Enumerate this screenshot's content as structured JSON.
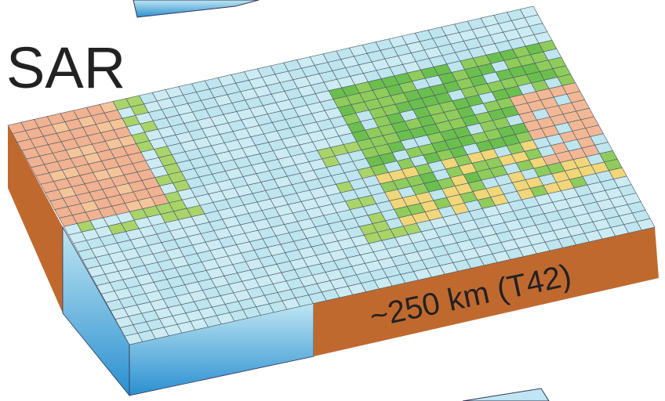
{
  "label": "SAR",
  "annotation": "~250 km (T42)"
}
